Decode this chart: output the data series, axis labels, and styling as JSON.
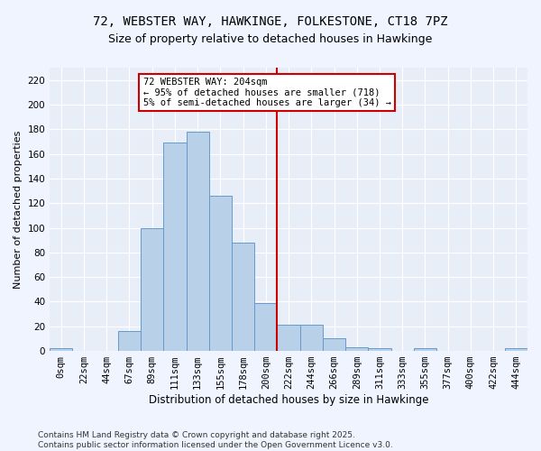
{
  "title_line1": "72, WEBSTER WAY, HAWKINGE, FOLKESTONE, CT18 7PZ",
  "title_line2": "Size of property relative to detached houses in Hawkinge",
  "xlabel": "Distribution of detached houses by size in Hawkinge",
  "ylabel": "Number of detached properties",
  "bar_labels": [
    "0sqm",
    "22sqm",
    "44sqm",
    "67sqm",
    "89sqm",
    "111sqm",
    "133sqm",
    "155sqm",
    "178sqm",
    "200sqm",
    "222sqm",
    "244sqm",
    "266sqm",
    "289sqm",
    "311sqm",
    "333sqm",
    "355sqm",
    "377sqm",
    "400sqm",
    "422sqm",
    "444sqm"
  ],
  "bar_values": [
    2,
    0,
    0,
    16,
    100,
    169,
    178,
    126,
    88,
    39,
    21,
    21,
    10,
    3,
    2,
    0,
    2,
    0,
    0,
    0,
    2
  ],
  "bar_color": "#b8d0e8",
  "bar_edge_color": "#6699cc",
  "vline_color": "#cc0000",
  "annotation_title": "72 WEBSTER WAY: 204sqm",
  "annotation_line1": "← 95% of detached houses are smaller (718)",
  "annotation_line2": "5% of semi-detached houses are larger (34) →",
  "annotation_box_color": "#cc0000",
  "ylim": [
    0,
    230
  ],
  "yticks": [
    0,
    20,
    40,
    60,
    80,
    100,
    120,
    140,
    160,
    180,
    200,
    220
  ],
  "footnote_line1": "Contains HM Land Registry data © Crown copyright and database right 2025.",
  "footnote_line2": "Contains public sector information licensed under the Open Government Licence v3.0.",
  "bg_color": "#f0f4ff",
  "plot_bg_color": "#e8eef8",
  "grid_color": "#ffffff",
  "title_fontsize": 10,
  "subtitle_fontsize": 9,
  "ylabel_fontsize": 8,
  "xlabel_fontsize": 8.5,
  "tick_fontsize": 7.5,
  "footnote_fontsize": 6.5
}
